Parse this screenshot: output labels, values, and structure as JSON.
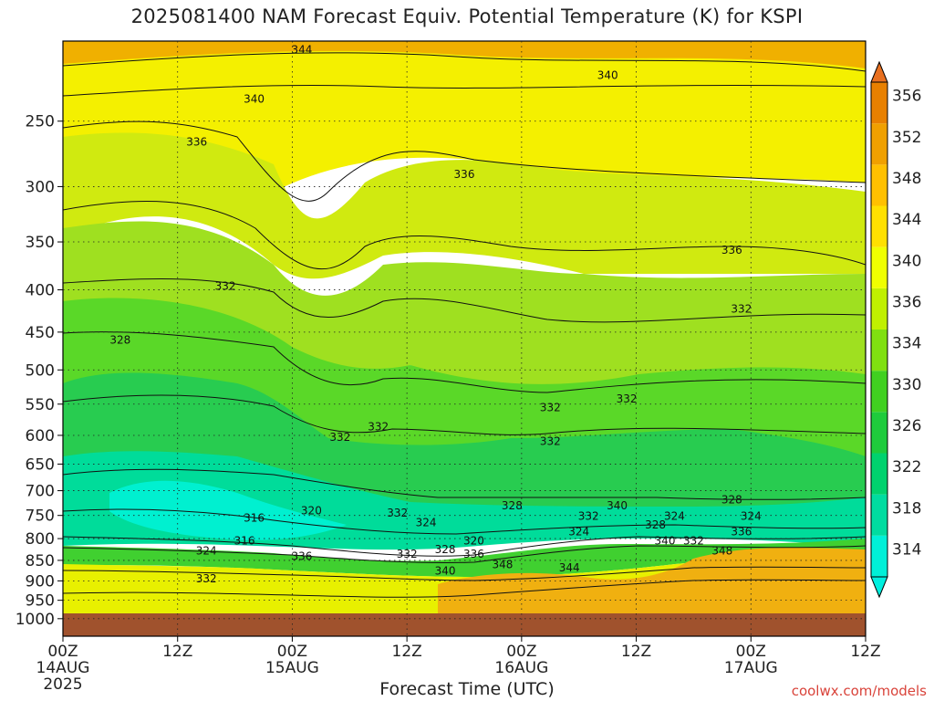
{
  "title": "2025081400 NAM Forecast Equiv. Potential Temperature (K) for KSPI",
  "watermark": "coolwx.com/models",
  "chart_data": {
    "type": "heatmap",
    "title": "2025081400 NAM Forecast Equiv. Potential Temperature (K) for KSPI",
    "xlabel": "Forecast Time (UTC)",
    "ylabel": "",
    "y_axis": {
      "scale": "pressure (hPa), inverted",
      "ticks": [
        250,
        300,
        350,
        400,
        450,
        500,
        550,
        600,
        650,
        700,
        750,
        800,
        850,
        900,
        950,
        1000
      ]
    },
    "x_axis": {
      "hours_range": [
        0,
        84
      ],
      "ticks": [
        {
          "hour": 0,
          "line1": "00Z",
          "line2": "14AUG",
          "line3": "2025"
        },
        {
          "hour": 12,
          "line1": "12Z",
          "line2": "",
          "line3": ""
        },
        {
          "hour": 24,
          "line1": "00Z",
          "line2": "15AUG",
          "line3": ""
        },
        {
          "hour": 36,
          "line1": "12Z",
          "line2": "",
          "line3": ""
        },
        {
          "hour": 48,
          "line1": "00Z",
          "line2": "16AUG",
          "line3": ""
        },
        {
          "hour": 60,
          "line1": "12Z",
          "line2": "",
          "line3": ""
        },
        {
          "hour": 72,
          "line1": "00Z",
          "line2": "17AUG",
          "line3": ""
        },
        {
          "hour": 84,
          "line1": "12Z",
          "line2": "",
          "line3": ""
        }
      ]
    },
    "colorbar": {
      "labels": [
        314,
        318,
        322,
        326,
        330,
        334,
        336,
        340,
        344,
        348,
        352,
        356
      ],
      "colors": [
        "#00f0d8",
        "#00dca0",
        "#00d26e",
        "#1ecb3c",
        "#40d020",
        "#80e010",
        "#c0f000",
        "#f0ff00",
        "#ffe000",
        "#ffc000",
        "#f0a000",
        "#e88000"
      ]
    },
    "contour_labels": [
      {
        "value": "344",
        "hour": 25,
        "p": 205
      },
      {
        "value": "340",
        "hour": 20,
        "p": 235
      },
      {
        "value": "340",
        "hour": 57,
        "p": 220
      },
      {
        "value": "336",
        "hour": 14,
        "p": 265
      },
      {
        "value": "336",
        "hour": 42,
        "p": 290
      },
      {
        "value": "336",
        "hour": 70,
        "p": 358
      },
      {
        "value": "332",
        "hour": 17,
        "p": 396
      },
      {
        "value": "332",
        "hour": 71,
        "p": 422
      },
      {
        "value": "328",
        "hour": 6,
        "p": 460
      },
      {
        "value": "332",
        "hour": 51,
        "p": 555
      },
      {
        "value": "332",
        "hour": 59,
        "p": 542
      },
      {
        "value": "332",
        "hour": 29,
        "p": 603
      },
      {
        "value": "332",
        "hour": 33,
        "p": 586
      },
      {
        "value": "332",
        "hour": 51,
        "p": 610
      },
      {
        "value": "316",
        "hour": 20,
        "p": 755
      },
      {
        "value": "320",
        "hour": 26,
        "p": 740
      },
      {
        "value": "332",
        "hour": 35,
        "p": 745
      },
      {
        "value": "328",
        "hour": 47,
        "p": 730
      },
      {
        "value": "340",
        "hour": 58,
        "p": 730
      },
      {
        "value": "332",
        "hour": 55,
        "p": 752
      },
      {
        "value": "324",
        "hour": 64,
        "p": 752
      },
      {
        "value": "328",
        "hour": 70,
        "p": 718
      },
      {
        "value": "324",
        "hour": 72,
        "p": 752
      },
      {
        "value": "324",
        "hour": 38,
        "p": 765
      },
      {
        "value": "328",
        "hour": 62,
        "p": 770
      },
      {
        "value": "324",
        "hour": 54,
        "p": 785
      },
      {
        "value": "336",
        "hour": 71,
        "p": 785
      },
      {
        "value": "316",
        "hour": 19,
        "p": 805
      },
      {
        "value": "320",
        "hour": 43,
        "p": 805
      },
      {
        "value": "340",
        "hour": 63,
        "p": 805
      },
      {
        "value": "332",
        "hour": 66,
        "p": 805
      },
      {
        "value": "324",
        "hour": 15,
        "p": 828
      },
      {
        "value": "348",
        "hour": 69,
        "p": 828
      },
      {
        "value": "328",
        "hour": 40,
        "p": 825
      },
      {
        "value": "336",
        "hour": 43,
        "p": 835
      },
      {
        "value": "332",
        "hour": 36,
        "p": 835
      },
      {
        "value": "336",
        "hour": 25,
        "p": 840
      },
      {
        "value": "348",
        "hour": 46,
        "p": 860
      },
      {
        "value": "344",
        "hour": 53,
        "p": 868
      },
      {
        "value": "340",
        "hour": 40,
        "p": 875
      },
      {
        "value": "332",
        "hour": 15,
        "p": 895
      }
    ]
  },
  "x_title": "Forecast Time (UTC)"
}
